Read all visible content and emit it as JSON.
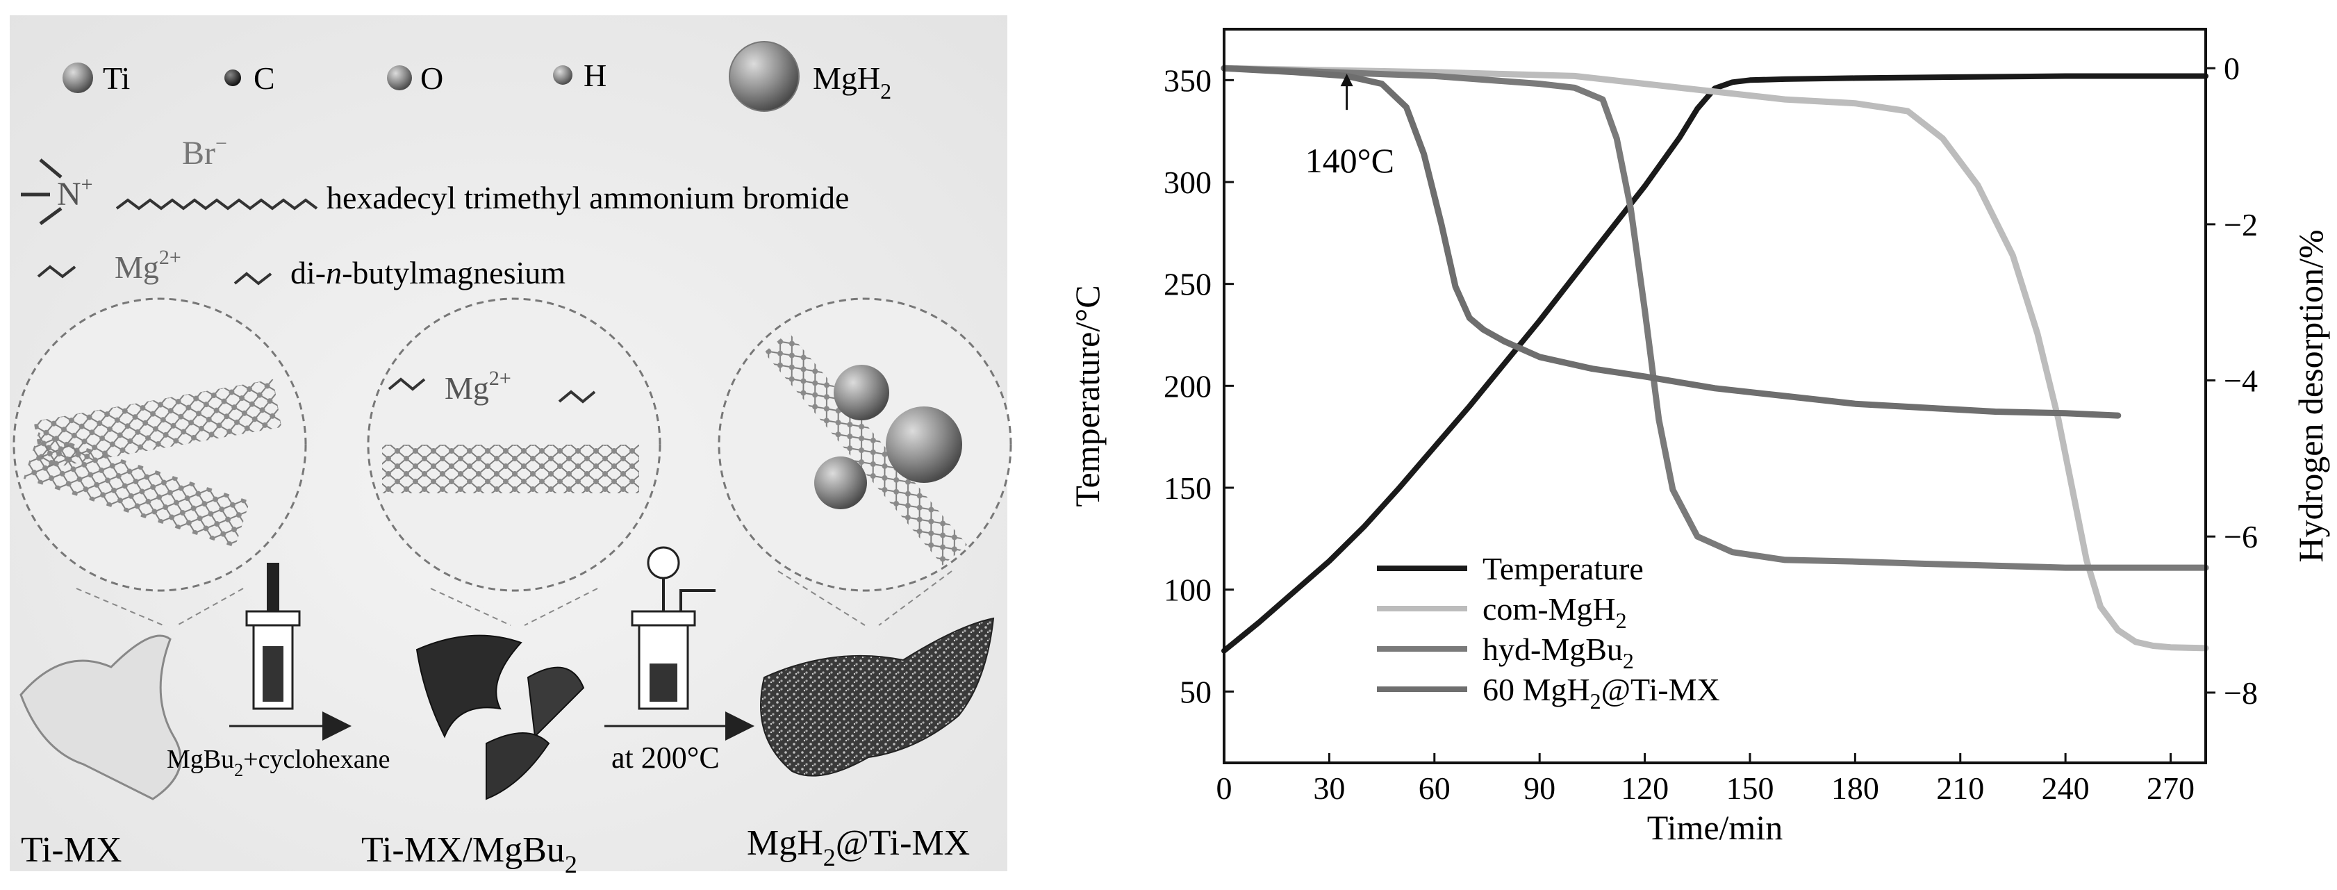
{
  "scheme": {
    "legend": {
      "ti": "Ti",
      "c": "C",
      "o": "O",
      "h": "H",
      "mgh2_main": "MgH",
      "mgh2_sub": "2"
    },
    "surfactant": {
      "n_label": "N",
      "n_charge": "+",
      "br_label": "Br",
      "br_charge": "−",
      "description": "hexadecyl trimethyl ammonium bromide"
    },
    "dibutyl": {
      "mg_label": "Mg",
      "mg_charge": "2+",
      "desc_prefix": "di-",
      "desc_italic": "n",
      "desc_suffix": "-butylmagnesium"
    },
    "zoom_mg": {
      "mg_label": "Mg",
      "mg_charge": "2+"
    },
    "steps": {
      "step1_main": "MgBu",
      "step1_sub": "2",
      "step1_rest": "+cyclohexane",
      "step2": "at 200°C"
    },
    "products": {
      "p1": "Ti-MX",
      "p2_main": "Ti-MX/MgBu",
      "p2_sub": "2",
      "p3_main": "MgH",
      "p3_sub": "2",
      "p3_rest": "@Ti-MX"
    }
  },
  "chart_data": {
    "type": "line",
    "title": "",
    "xlabel": "Time/min",
    "ylabel_left": "Temperature/°C",
    "ylabel_right": "Hydrogen desorption/%",
    "xlim": [
      0,
      280
    ],
    "ylim_left": [
      15,
      375
    ],
    "ylim_right": [
      -8.9,
      0.5
    ],
    "x_ticks": [
      0,
      30,
      60,
      90,
      120,
      150,
      180,
      210,
      240,
      270
    ],
    "y_left_ticks": [
      50,
      100,
      150,
      200,
      250,
      300,
      350
    ],
    "y_right_ticks": [
      0,
      -2,
      -4,
      -6,
      -8
    ],
    "annotation": "140°C",
    "annotation_x": 35,
    "annotation_y_right": 0,
    "series": [
      {
        "name": "Temperature",
        "axis": "left",
        "color": "#1a1a1a",
        "x": [
          0,
          10,
          20,
          30,
          40,
          50,
          60,
          70,
          80,
          90,
          100,
          110,
          120,
          130,
          135,
          140,
          145,
          150,
          160,
          180,
          210,
          240,
          270,
          280
        ],
        "y": [
          70,
          84,
          99,
          114,
          131,
          150,
          170,
          190,
          211,
          232,
          254,
          276,
          298,
          322,
          336,
          346,
          349,
          350,
          350.5,
          351,
          351.5,
          352,
          352,
          352
        ]
      },
      {
        "name": "com-MgH2",
        "axis": "right",
        "color": "#bcbcbc",
        "x": [
          0,
          60,
          100,
          120,
          140,
          160,
          180,
          195,
          205,
          215,
          225,
          232,
          238,
          242,
          246,
          250,
          255,
          260,
          265,
          270,
          280
        ],
        "y": [
          0.0,
          -0.05,
          -0.1,
          -0.2,
          -0.3,
          -0.4,
          -0.45,
          -0.55,
          -0.9,
          -1.5,
          -2.4,
          -3.4,
          -4.5,
          -5.4,
          -6.3,
          -6.9,
          -7.2,
          -7.35,
          -7.4,
          -7.42,
          -7.43
        ]
      },
      {
        "name": "hyd-MgBu2",
        "axis": "right",
        "color": "#7a7a7a",
        "x": [
          0,
          30,
          60,
          90,
          100,
          108,
          112,
          116,
          120,
          124,
          128,
          135,
          145,
          160,
          180,
          200,
          240,
          280
        ],
        "y": [
          0.0,
          -0.05,
          -0.1,
          -0.2,
          -0.25,
          -0.4,
          -0.9,
          -1.8,
          -3.1,
          -4.5,
          -5.4,
          -6.0,
          -6.2,
          -6.3,
          -6.32,
          -6.35,
          -6.4,
          -6.4
        ]
      },
      {
        "name": "60 MgH2@Ti-MX",
        "axis": "right",
        "color": "#6e6e6e",
        "x": [
          0,
          20,
          35,
          45,
          52,
          57,
          62,
          66,
          70,
          74,
          80,
          90,
          105,
          120,
          140,
          160,
          180,
          200,
          220,
          240,
          255
        ],
        "y": [
          0.0,
          -0.05,
          -0.1,
          -0.2,
          -0.5,
          -1.1,
          -2.0,
          -2.8,
          -3.2,
          -3.35,
          -3.5,
          -3.7,
          -3.85,
          -3.95,
          -4.1,
          -4.2,
          -4.3,
          -4.35,
          -4.4,
          -4.42,
          -4.45
        ]
      }
    ],
    "legend": [
      {
        "label_main": "Temperature",
        "label_sub": "",
        "label_rest": ""
      },
      {
        "label_main": "com-MgH",
        "label_sub": "2",
        "label_rest": ""
      },
      {
        "label_main": "hyd-MgBu",
        "label_sub": "2",
        "label_rest": ""
      },
      {
        "label_main": "60 MgH",
        "label_sub": "2",
        "label_rest": "@Ti-MX"
      }
    ],
    "legend_placement": "bottom-left"
  }
}
